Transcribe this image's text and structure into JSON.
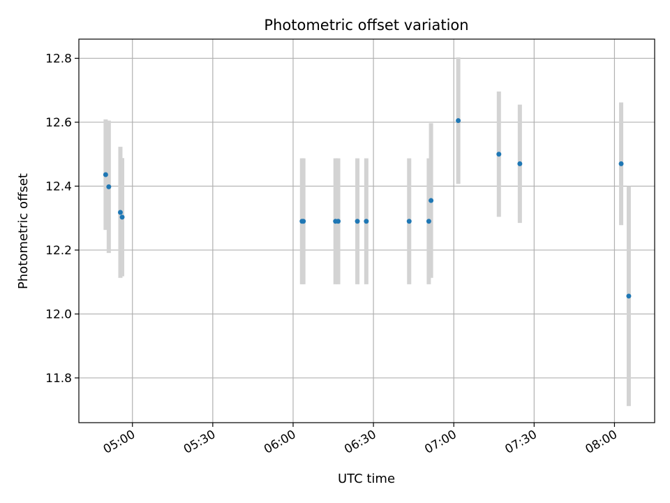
{
  "chart_data": {
    "type": "scatter",
    "title": "Photometric offset variation",
    "xlabel": "UTC time",
    "ylabel": "Photometric offset",
    "xlim": [
      "04:40",
      "08:15"
    ],
    "ylim": [
      11.66,
      12.86
    ],
    "x_ticks": [
      "05:00",
      "05:30",
      "06:00",
      "06:30",
      "07:00",
      "07:30",
      "08:00"
    ],
    "y_ticks": [
      "11.8",
      "12.0",
      "12.2",
      "12.4",
      "12.6",
      "12.8"
    ],
    "grid": true,
    "colors": {
      "point": "#1f77b4",
      "errorbar": "#d3d3d3",
      "grid": "#b0b0b0"
    },
    "series": [
      {
        "points": [
          {
            "x": "04:50:00",
            "y": 12.436,
            "err": 0.173
          },
          {
            "x": "04:51:10",
            "y": 12.398,
            "err": 0.207
          },
          {
            "x": "04:55:30",
            "y": 12.318,
            "err": 0.205
          },
          {
            "x": "04:56:10",
            "y": 12.303,
            "err": 0.185
          },
          {
            "x": "06:03:20",
            "y": 12.29,
            "err": 0.197
          },
          {
            "x": "06:03:50",
            "y": 12.29,
            "err": 0.197
          },
          {
            "x": "06:15:50",
            "y": 12.29,
            "err": 0.197
          },
          {
            "x": "06:16:50",
            "y": 12.29,
            "err": 0.197
          },
          {
            "x": "06:24:00",
            "y": 12.29,
            "err": 0.197
          },
          {
            "x": "06:27:20",
            "y": 12.29,
            "err": 0.197
          },
          {
            "x": "06:43:20",
            "y": 12.29,
            "err": 0.197
          },
          {
            "x": "06:50:40",
            "y": 12.29,
            "err": 0.197
          },
          {
            "x": "06:51:30",
            "y": 12.355,
            "err": 0.242
          },
          {
            "x": "07:01:40",
            "y": 12.605,
            "err": 0.198
          },
          {
            "x": "07:16:50",
            "y": 12.5,
            "err": 0.196
          },
          {
            "x": "07:24:40",
            "y": 12.47,
            "err": 0.185
          },
          {
            "x": "08:02:30",
            "y": 12.47,
            "err": 0.192
          },
          {
            "x": "08:05:20",
            "y": 12.056,
            "err": 0.344
          }
        ]
      }
    ]
  }
}
